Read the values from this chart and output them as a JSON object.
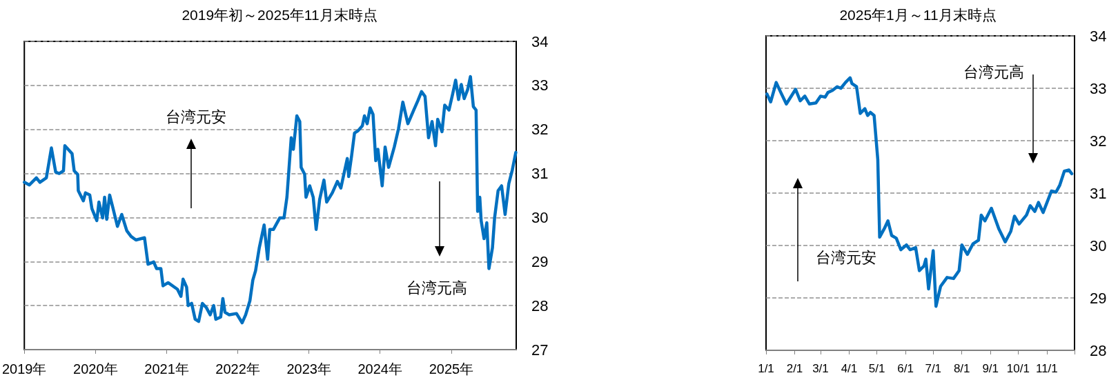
{
  "chart_data": [
    {
      "type": "line",
      "title": "2019年初～2025年11月末時点",
      "annotations": [
        "台湾元安",
        "台湾元高"
      ],
      "xlim": [
        "2019-01-01",
        "2025-11-30"
      ],
      "xticks": [
        {
          "value": "2019-01-01",
          "label": "2019年"
        },
        {
          "value": "2020-01-01",
          "label": "2020年"
        },
        {
          "value": "2021-01-01",
          "label": "2021年"
        },
        {
          "value": "2022-01-01",
          "label": "2022年"
        },
        {
          "value": "2023-01-01",
          "label": "2023年"
        },
        {
          "value": "2024-01-01",
          "label": "2024年"
        },
        {
          "value": "2025-01-01",
          "label": "2025年"
        }
      ],
      "ylim": [
        27,
        34
      ],
      "yticks": [
        27,
        28,
        29,
        30,
        31,
        32,
        33,
        34
      ],
      "grid": "y",
      "marker": "none",
      "line_style": "solid",
      "x": [
        "2019-01-01",
        "2019-01-27",
        "2019-03-04",
        "2019-03-22",
        "2019-04-24",
        "2019-05-20",
        "2019-06-11",
        "2019-06-29",
        "2019-07-21",
        "2019-07-28",
        "2019-09-03",
        "2019-09-14",
        "2019-10-02",
        "2019-10-05",
        "2019-10-31",
        "2019-11-11",
        "2019-12-03",
        "2019-12-14",
        "2020-01-08",
        "2020-01-19",
        "2020-02-07",
        "2020-02-17",
        "2020-02-28",
        "2020-03-14",
        "2020-03-29",
        "2020-04-23",
        "2020-05-15",
        "2020-06-10",
        "2020-07-02",
        "2020-07-27",
        "2020-09-09",
        "2020-09-27",
        "2020-10-26",
        "2020-11-10",
        "2020-12-02",
        "2020-12-13",
        "2021-01-08",
        "2021-02-25",
        "2021-03-15",
        "2021-03-26",
        "2021-04-13",
        "2021-04-21",
        "2021-05-09",
        "2021-05-27",
        "2021-06-14",
        "2021-07-03",
        "2021-07-24",
        "2021-08-12",
        "2021-08-30",
        "2021-09-10",
        "2021-10-05",
        "2021-10-16",
        "2021-10-27",
        "2021-11-18",
        "2021-12-25",
        "2022-01-23",
        "2022-02-10",
        "2022-03-04",
        "2022-03-19",
        "2022-04-02",
        "2022-04-21",
        "2022-05-16",
        "2022-06-03",
        "2022-06-14",
        "2022-07-03",
        "2022-08-04",
        "2022-08-26",
        "2022-09-10",
        "2022-10-02",
        "2022-10-13",
        "2022-10-31",
        "2022-11-15",
        "2022-11-22",
        "2022-12-10",
        "2022-12-17",
        "2023-01-05",
        "2023-01-23",
        "2023-02-07",
        "2023-02-25",
        "2023-03-19",
        "2023-04-02",
        "2023-05-01",
        "2023-05-27",
        "2023-06-14",
        "2023-06-29",
        "2023-07-17",
        "2023-07-24",
        "2023-08-08",
        "2023-08-23",
        "2023-09-10",
        "2023-10-02",
        "2023-10-13",
        "2023-10-27",
        "2023-11-11",
        "2023-11-26",
        "2023-12-10",
        "2023-12-21",
        "2024-01-12",
        "2024-01-27",
        "2024-02-14",
        "2024-03-14",
        "2024-04-05",
        "2024-04-27",
        "2024-05-23",
        "2024-06-22",
        "2024-07-13",
        "2024-08-01",
        "2024-08-19",
        "2024-09-06",
        "2024-09-24",
        "2024-10-12",
        "2024-10-23",
        "2024-11-14",
        "2024-11-28",
        "2024-12-20",
        "2025-01-08",
        "2025-01-23",
        "2025-02-07",
        "2025-02-21",
        "2025-03-08",
        "2025-03-26",
        "2025-04-09",
        "2025-04-24",
        "2025-05-08",
        "2025-05-16",
        "2025-05-27",
        "2025-06-03",
        "2025-06-18",
        "2025-07-02",
        "2025-07-13",
        "2025-07-31",
        "2025-08-11",
        "2025-08-29",
        "2025-09-16",
        "2025-10-04",
        "2025-10-23",
        "2025-11-10",
        "2025-11-28"
      ],
      "series": [
        {
          "color": "#0070c0",
          "values": [
            30.8,
            30.74,
            30.9,
            30.8,
            30.9,
            31.58,
            31.03,
            31.0,
            31.06,
            31.63,
            31.45,
            31.06,
            30.98,
            30.61,
            30.38,
            30.56,
            30.51,
            30.2,
            29.93,
            30.35,
            29.99,
            30.46,
            29.96,
            30.51,
            30.25,
            29.8,
            30.07,
            29.7,
            29.57,
            29.49,
            29.54,
            28.94,
            28.99,
            28.84,
            28.84,
            28.45,
            28.52,
            28.37,
            28.21,
            28.6,
            28.42,
            28.0,
            28.05,
            27.69,
            27.64,
            28.05,
            27.95,
            27.79,
            28.0,
            27.69,
            27.74,
            28.16,
            27.85,
            27.79,
            27.82,
            27.61,
            27.79,
            28.11,
            28.58,
            28.79,
            29.31,
            29.83,
            29.05,
            29.73,
            29.73,
            29.99,
            29.99,
            30.46,
            31.81,
            31.55,
            32.31,
            32.18,
            31.14,
            30.98,
            30.46,
            30.72,
            30.46,
            29.73,
            30.41,
            30.85,
            30.35,
            30.56,
            30.82,
            30.67,
            30.98,
            31.34,
            30.93,
            31.4,
            31.92,
            31.97,
            32.08,
            32.31,
            32.13,
            32.49,
            32.34,
            31.29,
            31.55,
            30.72,
            31.6,
            31.14,
            31.6,
            32.02,
            32.62,
            32.13,
            32.44,
            32.65,
            32.86,
            32.75,
            31.81,
            32.18,
            31.63,
            32.23,
            31.95,
            32.55,
            32.44,
            32.81,
            33.12,
            32.68,
            33.02,
            32.7,
            32.91,
            33.2,
            32.52,
            32.44,
            30.14,
            30.46,
            29.93,
            29.52,
            29.88,
            28.84,
            29.31,
            29.99,
            30.61,
            30.72,
            30.07,
            30.77,
            31.08,
            31.48
          ]
        }
      ]
    },
    {
      "type": "line",
      "title": "2025年1月～11月末時点",
      "annotations": [
        "台湾元高",
        "台湾元安"
      ],
      "xlim": [
        "2025-01-01",
        "2025-12-01"
      ],
      "xticks": [
        {
          "value": "2025-01-01",
          "label": "1/1"
        },
        {
          "value": "2025-02-01",
          "label": "2/1"
        },
        {
          "value": "2025-03-01",
          "label": "3/1"
        },
        {
          "value": "2025-04-01",
          "label": "4/1"
        },
        {
          "value": "2025-05-01",
          "label": "5/1"
        },
        {
          "value": "2025-06-01",
          "label": "6/1"
        },
        {
          "value": "2025-07-01",
          "label": "7/1"
        },
        {
          "value": "2025-08-01",
          "label": "8/1"
        },
        {
          "value": "2025-09-01",
          "label": "9/1"
        },
        {
          "value": "2025-10-01",
          "label": "10/1"
        },
        {
          "value": "2025-11-01",
          "label": "11/1"
        },
        {
          "value": "2025-12-01",
          "label": null
        }
      ],
      "ylim": [
        28,
        34
      ],
      "yticks": [
        28,
        29,
        30,
        31,
        32,
        33,
        34
      ],
      "grid": "y",
      "marker": "none",
      "line_style": "solid",
      "x": [
        "2025-01-02",
        "2025-01-06",
        "2025-01-12",
        "2025-01-17",
        "2025-01-23",
        "2025-02-02",
        "2025-02-07",
        "2025-02-12",
        "2025-02-17",
        "2025-02-24",
        "2025-03-01",
        "2025-03-06",
        "2025-03-09",
        "2025-03-14",
        "2025-03-19",
        "2025-03-23",
        "2025-03-28",
        "2025-04-02",
        "2025-04-04",
        "2025-04-09",
        "2025-04-13",
        "2025-04-18",
        "2025-04-21",
        "2025-04-24",
        "2025-04-28",
        "2025-05-02",
        "2025-05-04",
        "2025-05-09",
        "2025-05-13",
        "2025-05-17",
        "2025-05-22",
        "2025-05-27",
        "2025-06-02",
        "2025-06-06",
        "2025-06-12",
        "2025-06-16",
        "2025-06-21",
        "2025-06-23",
        "2025-06-26",
        "2025-07-01",
        "2025-07-04",
        "2025-07-09",
        "2025-07-16",
        "2025-07-23",
        "2025-07-29",
        "2025-08-01",
        "2025-08-07",
        "2025-08-13",
        "2025-08-19",
        "2025-08-22",
        "2025-08-26",
        "2025-09-02",
        "2025-09-10",
        "2025-09-17",
        "2025-09-23",
        "2025-09-27",
        "2025-10-02",
        "2025-10-10",
        "2025-10-14",
        "2025-10-19",
        "2025-10-23",
        "2025-10-28",
        "2025-11-06",
        "2025-11-11",
        "2025-11-15",
        "2025-11-20",
        "2025-11-25",
        "2025-11-28"
      ],
      "series": [
        {
          "color": "#0070c0",
          "values": [
            32.89,
            32.74,
            33.11,
            32.92,
            32.7,
            32.98,
            32.76,
            32.85,
            32.7,
            32.72,
            32.85,
            32.83,
            32.92,
            32.96,
            33.03,
            33.0,
            33.11,
            33.2,
            33.09,
            33.03,
            32.52,
            32.61,
            32.48,
            32.54,
            32.48,
            31.64,
            30.16,
            30.32,
            30.47,
            30.19,
            30.14,
            29.92,
            30.01,
            29.92,
            29.96,
            29.52,
            29.61,
            29.74,
            29.17,
            29.9,
            28.84,
            29.22,
            29.39,
            29.37,
            29.52,
            30.01,
            29.83,
            30.03,
            30.1,
            30.58,
            30.47,
            30.71,
            30.32,
            30.07,
            30.27,
            30.56,
            30.41,
            30.58,
            30.76,
            30.65,
            30.82,
            30.63,
            31.04,
            31.02,
            31.15,
            31.42,
            31.44,
            31.37
          ]
        }
      ]
    }
  ]
}
